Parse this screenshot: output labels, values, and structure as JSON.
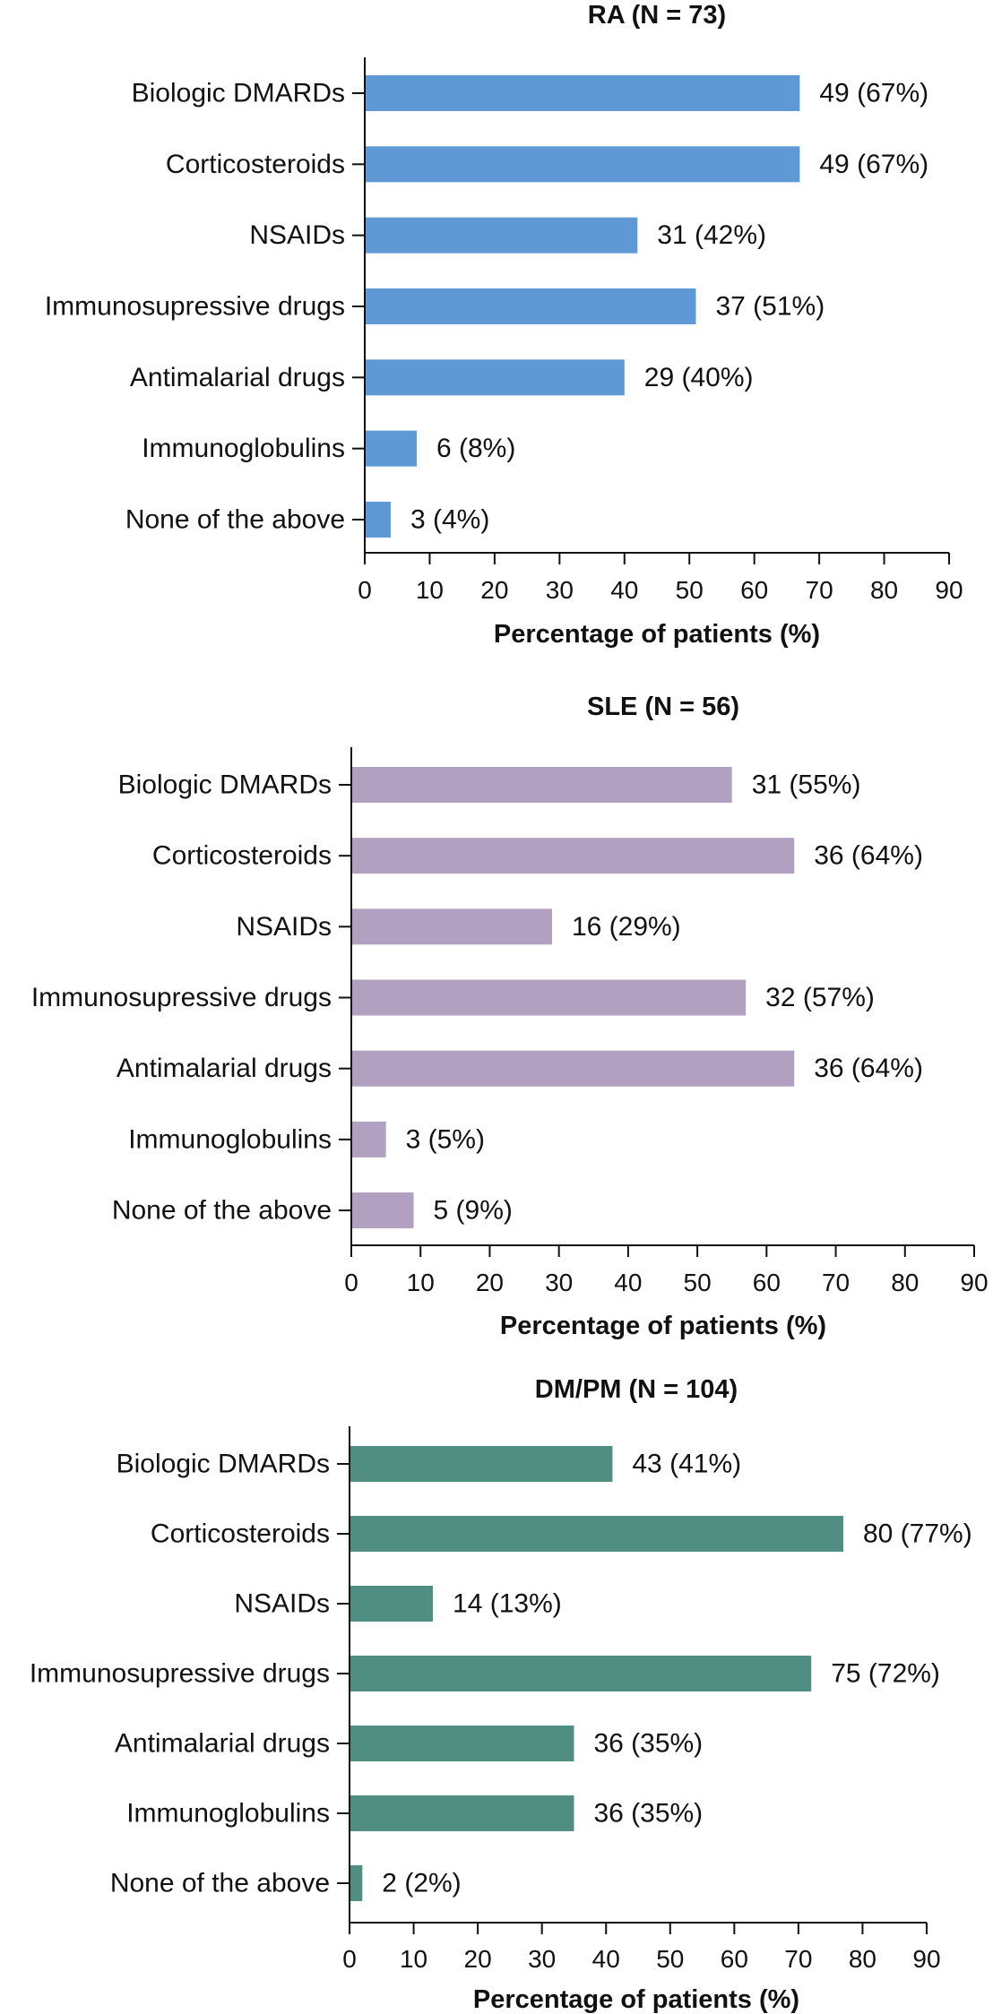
{
  "chart_data": [
    {
      "type": "bar",
      "orientation": "horizontal",
      "title": "RA (N = 73)",
      "xlabel": "Percentage of patients (%)",
      "xlim": [
        0,
        90
      ],
      "xticks": [
        "0",
        "10",
        "20",
        "30",
        "40",
        "50",
        "60",
        "70",
        "80",
        "90"
      ],
      "color": "#5e98d5",
      "categories": [
        "Biologic DMARDs",
        "Corticosteroids",
        "NSAIDs",
        "Immunosupressive drugs",
        "Antimalarial drugs",
        "Immunoglobulins",
        "None of the above"
      ],
      "values": [
        67,
        67,
        42,
        51,
        40,
        8,
        4
      ],
      "labels": [
        "49 (67%)",
        "49 (67%)",
        "31 (42%)",
        "37 (51%)",
        "29 (40%)",
        "6 (8%)",
        "3 (4%)"
      ]
    },
    {
      "type": "bar",
      "orientation": "horizontal",
      "title": "SLE (N = 56)",
      "xlabel": "Percentage of patients (%)",
      "xlim": [
        0,
        90
      ],
      "xticks": [
        "0",
        "10",
        "20",
        "30",
        "40",
        "50",
        "60",
        "70",
        "80",
        "90"
      ],
      "color": "#b2a0c0",
      "categories": [
        "Biologic DMARDs",
        "Corticosteroids",
        "NSAIDs",
        "Immunosupressive drugs",
        "Antimalarial drugs",
        "Immunoglobulins",
        "None of the above"
      ],
      "values": [
        55,
        64,
        29,
        57,
        64,
        5,
        9
      ],
      "labels": [
        "31 (55%)",
        "36 (64%)",
        "16 (29%)",
        "32 (57%)",
        "36 (64%)",
        "3 (5%)",
        "5 (9%)"
      ]
    },
    {
      "type": "bar",
      "orientation": "horizontal",
      "title": "DM/PM (N = 104)",
      "xlabel": "Percentage of patients (%)",
      "xlim": [
        0,
        90
      ],
      "xticks": [
        "0",
        "10",
        "20",
        "30",
        "40",
        "50",
        "60",
        "70",
        "80",
        "90"
      ],
      "color": "#4f8e80",
      "categories": [
        "Biologic DMARDs",
        "Corticosteroids",
        "NSAIDs",
        "Immunosupressive drugs",
        "Antimalarial drugs",
        "Immunoglobulins",
        "None of the above"
      ],
      "values": [
        41,
        77,
        13,
        72,
        35,
        35,
        2
      ],
      "labels": [
        "43 (41%)",
        "80 (77%)",
        "14 (13%)",
        "75 (72%)",
        "36 (35%)",
        "36 (35%)",
        "2 (2%)"
      ]
    }
  ]
}
